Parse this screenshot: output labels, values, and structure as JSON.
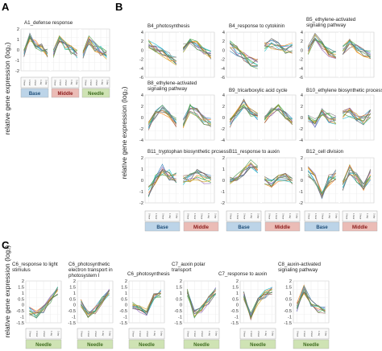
{
  "panels": {
    "A": {
      "letter": "A",
      "ylabel": "relative gene expression (log₂)",
      "yticks": [
        "2",
        "1",
        "0",
        "-1",
        "-2"
      ],
      "legend": [
        "Base",
        "Middle",
        "Needle"
      ]
    },
    "B": {
      "letter": "B",
      "ylabel": "relative gene expression (log₂)",
      "yticks_row1": [
        "4",
        "2",
        "0",
        "-2",
        "-4",
        "-6"
      ],
      "yticks_row2": [
        "4",
        "2",
        "0",
        "-2",
        "-4"
      ],
      "yticks_row3": [
        "2",
        "1",
        "0",
        "-1",
        "-2"
      ],
      "legend": [
        "Base",
        "Middle"
      ]
    },
    "C": {
      "letter": "C",
      "ylabel": "relative gene expression (log₂)",
      "yticks": [
        "2",
        "1.5",
        "1",
        "0.5",
        "0",
        "-0.5",
        "-1",
        "-1.5"
      ],
      "legend": "Needle"
    }
  },
  "stage_labels": [
    "0 hour",
    "1 hour",
    "3 hour",
    "1 day",
    "3 day"
  ],
  "colors": {
    "base": "#bcd4e8",
    "base_text": "#1f4e79",
    "middle": "#ebbcb6",
    "middle_text": "#8b1a1a",
    "needle": "#cfe3b4",
    "needle_text": "#3f6d1f"
  },
  "chart_data": [
    {
      "id": "A1",
      "type": "line",
      "title": "A1_defense response",
      "ylim": [
        -2,
        2
      ],
      "segments": 3,
      "shape": [
        [
          -0.2,
          1.2,
          0.6,
          0.2,
          -0.3
        ],
        [
          -0.4,
          1.0,
          0.4,
          0.0,
          -0.4
        ],
        [
          -0.5,
          0.9,
          0.3,
          -0.1,
          -0.5
        ]
      ],
      "spread": 0.45
    },
    {
      "id": "B4a",
      "type": "line",
      "title": "B4_photosynthesis",
      "ylim": [
        -6,
        4
      ],
      "segments": 2,
      "shape": [
        [
          1.5,
          0.5,
          -0.5,
          -1.5,
          -2.5
        ],
        [
          0.5,
          1.5,
          1.0,
          0.0,
          -1.0
        ]
      ],
      "spread": 1.0
    },
    {
      "id": "B4b",
      "type": "line",
      "title": "B4_response to cytokinin",
      "ylim": [
        -6,
        4
      ],
      "segments": 2,
      "shape": [
        [
          1.0,
          0.0,
          -1.5,
          -2.5,
          -3.0
        ],
        [
          0.5,
          1.5,
          1.0,
          0.0,
          0.5
        ]
      ],
      "spread": 1.2
    },
    {
      "id": "B5",
      "type": "line",
      "title": "B5_ethylene-activated signaling pathway",
      "ylim": [
        -6,
        4
      ],
      "segments": 2,
      "shape": [
        [
          0.0,
          3.0,
          1.0,
          -0.5,
          -1.0
        ],
        [
          0.0,
          1.5,
          0.5,
          -0.5,
          -1.0
        ]
      ],
      "spread": 1.0
    },
    {
      "id": "B8",
      "type": "line",
      "title": "B8_ethylene-activated signaling pathway",
      "ylim": [
        -4,
        4
      ],
      "segments": 2,
      "shape": [
        [
          -1.5,
          0.5,
          1.5,
          0.5,
          -1.0
        ],
        [
          -1.0,
          1.5,
          1.0,
          -0.5,
          -1.0
        ]
      ],
      "spread": 0.9
    },
    {
      "id": "B9",
      "type": "line",
      "title": "B9_tricarboxylic acid cycle",
      "ylim": [
        -4,
        4
      ],
      "segments": 2,
      "shape": [
        [
          -1.0,
          0.5,
          2.5,
          1.0,
          0.0
        ],
        [
          -0.5,
          1.0,
          2.0,
          0.5,
          -0.5
        ]
      ],
      "spread": 0.8
    },
    {
      "id": "B10",
      "type": "line",
      "title": "B10_ethylene biosynthetic process",
      "ylim": [
        -4,
        4
      ],
      "segments": 2,
      "shape": [
        [
          0.0,
          -1.0,
          1.0,
          0.0,
          -0.5
        ],
        [
          0.5,
          1.0,
          0.0,
          -0.5,
          0.5
        ]
      ],
      "spread": 0.9
    },
    {
      "id": "B11a",
      "type": "line",
      "title": "B11_tryptophan biosynthetic prcsess",
      "ylim": [
        -2,
        2
      ],
      "segments": 2,
      "shape": [
        [
          -1.0,
          0.2,
          1.0,
          0.5,
          0.2
        ],
        [
          0.0,
          0.3,
          0.5,
          0.2,
          0.0
        ]
      ],
      "spread": 0.5
    },
    {
      "id": "B11b",
      "type": "line",
      "title": "B11_response to auxin",
      "ylim": [
        -2,
        2
      ],
      "segments": 2,
      "shape": [
        [
          0.0,
          0.2,
          0.8,
          1.5,
          1.0
        ],
        [
          0.0,
          -0.3,
          0.2,
          0.3,
          0.0
        ]
      ],
      "spread": 0.35
    },
    {
      "id": "B12",
      "type": "line",
      "title": "B12_cell division",
      "ylim": [
        -2,
        2
      ],
      "segments": 2,
      "shape": [
        [
          0.8,
          0.2,
          -1.5,
          0.0,
          0.5
        ],
        [
          -0.5,
          1.0,
          0.2,
          -0.5,
          0.5
        ]
      ],
      "spread": 0.5
    },
    {
      "id": "C6a",
      "type": "line",
      "title": "C6_response to light stimulus",
      "ylim": [
        -1.5,
        2
      ],
      "segments": 1,
      "shape": [
        [
          -0.5,
          -0.8,
          -0.3,
          0.5,
          1.2
        ]
      ],
      "spread": 0.35
    },
    {
      "id": "C6b",
      "type": "line",
      "title": "C6_photosynthetic electron transport in photosystem I",
      "ylim": [
        -1.5,
        2
      ],
      "segments": 1,
      "shape": [
        [
          0.2,
          -0.8,
          -0.5,
          0.3,
          1.0
        ]
      ],
      "spread": 0.35
    },
    {
      "id": "C6c",
      "type": "line",
      "title": "C6_photosynthesis",
      "ylim": [
        -1.5,
        2
      ],
      "segments": 1,
      "shape": [
        [
          0.0,
          -0.4,
          -0.6,
          0.6,
          1.0
        ]
      ],
      "spread": 0.35
    },
    {
      "id": "C7a",
      "type": "line",
      "title": "C7_auxin polar transport",
      "ylim": [
        -1.5,
        2
      ],
      "segments": 1,
      "shape": [
        [
          1.0,
          -0.8,
          -0.3,
          0.4,
          1.2
        ]
      ],
      "spread": 0.35
    },
    {
      "id": "C7b",
      "type": "line",
      "title": "C7_response to auxin",
      "ylim": [
        -1.5,
        2
      ],
      "segments": 1,
      "shape": [
        [
          0.8,
          -0.9,
          0.3,
          0.9,
          1.2
        ]
      ],
      "spread": 0.35
    },
    {
      "id": "C8",
      "type": "line",
      "title": "C8_auxin-activated signaling pathway",
      "ylim": [
        -1.5,
        2
      ],
      "segments": 1,
      "shape": [
        [
          -0.2,
          1.3,
          0.2,
          -0.3,
          -0.5
        ]
      ],
      "spread": 0.35
    }
  ],
  "series_colors": [
    "#1f77b4",
    "#2ca02c",
    "#ff7f0e",
    "#555555",
    "#9467bd",
    "#17becf",
    "#d4a017",
    "#8c564b",
    "#7f7f7f",
    "#4f9a4f",
    "#e377c2",
    "#bcbd22"
  ]
}
